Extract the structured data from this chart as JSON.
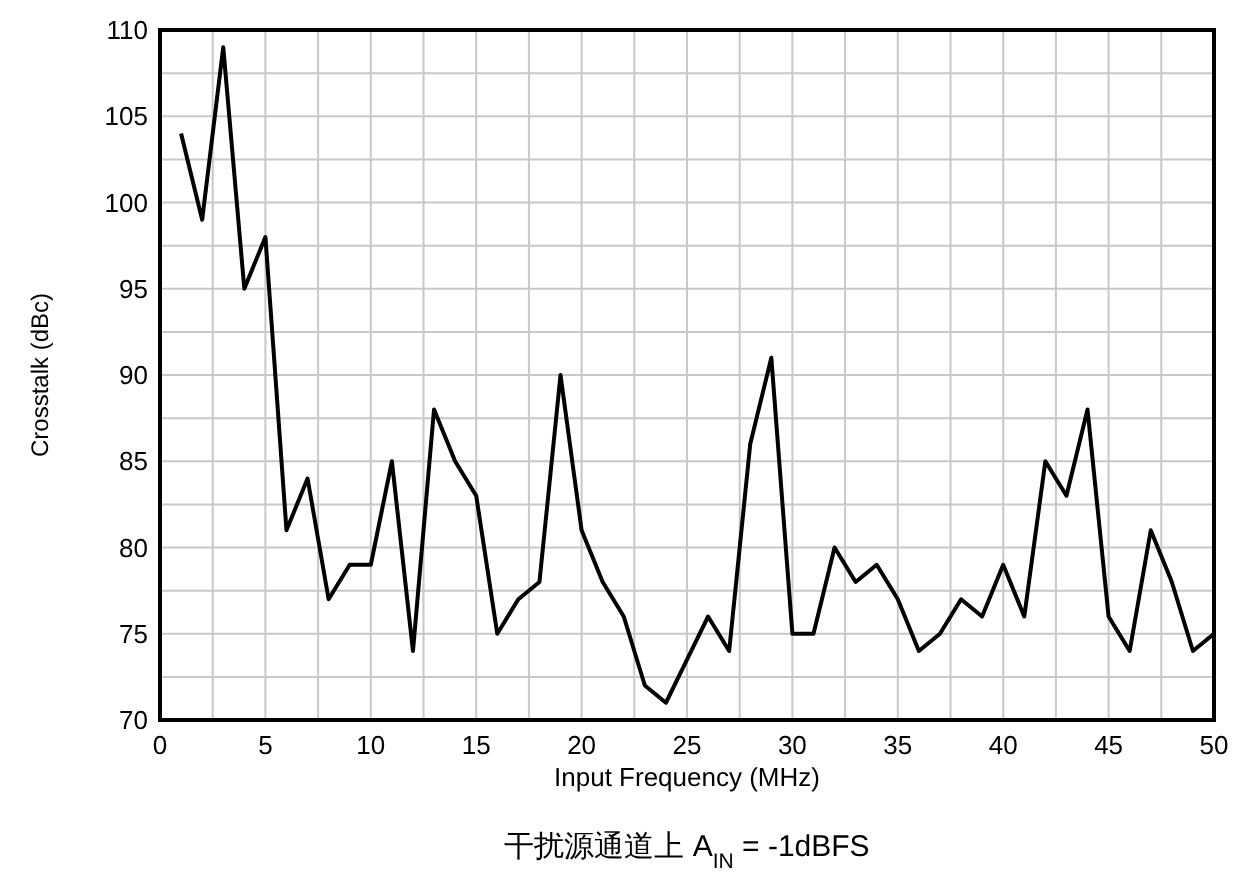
{
  "chart_data": {
    "type": "line",
    "xlabel": "Input Frequency (MHz)",
    "ylabel": "Crosstalk (dBc)",
    "annotations": [
      "干扰源通道上 A$_{IN}$ = -1dBFS"
    ],
    "x": [
      1,
      2,
      3,
      4,
      5,
      6,
      7,
      8,
      9,
      10,
      11,
      12,
      13,
      14,
      15,
      16,
      17,
      18,
      19,
      20,
      21,
      22,
      23,
      24,
      25,
      26,
      27,
      28,
      29,
      30,
      31,
      32,
      33,
      34,
      35,
      36,
      37,
      38,
      39,
      40,
      41,
      42,
      43,
      44,
      45,
      46,
      47,
      48,
      49,
      50
    ],
    "series": [
      {
        "color": "#000000",
        "values": [
          104,
          99,
          109,
          95,
          98,
          81,
          84,
          77,
          79,
          79,
          85,
          74,
          88,
          85,
          83,
          75,
          77,
          78,
          90,
          81,
          78,
          76,
          72,
          71,
          73.5,
          76,
          74,
          86,
          91,
          75,
          75,
          80,
          78,
          79,
          77,
          74,
          75,
          77,
          76,
          79,
          76,
          85,
          83,
          88,
          76,
          74,
          81,
          78,
          74,
          75
        ]
      }
    ],
    "xlim": [
      0,
      50
    ],
    "ylim": [
      70,
      110
    ],
    "xticks": [
      0,
      {
        "value": 2.5,
        "label": null
      },
      5,
      {
        "value": 7.5,
        "label": null
      },
      10,
      {
        "value": 12.5,
        "label": null
      },
      15,
      {
        "value": 17.5,
        "label": null
      },
      20,
      {
        "value": 22.5,
        "label": null
      },
      25,
      {
        "value": 27.5,
        "label": null
      },
      30,
      {
        "value": 32.5,
        "label": null
      },
      35,
      {
        "value": 37.5,
        "label": null
      },
      40,
      {
        "value": 42.5,
        "label": null
      },
      45,
      {
        "value": 47.5,
        "label": null
      },
      50
    ],
    "yticks": [
      70,
      {
        "value": 72.5,
        "label": null
      },
      75,
      {
        "value": 77.5,
        "label": null
      },
      80,
      {
        "value": 82.5,
        "label": null
      },
      85,
      {
        "value": 87.5,
        "label": null
      },
      90,
      {
        "value": 92.5,
        "label": null
      },
      95,
      {
        "value": 97.5,
        "label": null
      },
      100,
      {
        "value": 102.5,
        "label": null
      },
      105,
      {
        "value": 107.5,
        "label": null
      },
      110
    ],
    "grid": true,
    "marker": "none",
    "line_style": "solid"
  }
}
